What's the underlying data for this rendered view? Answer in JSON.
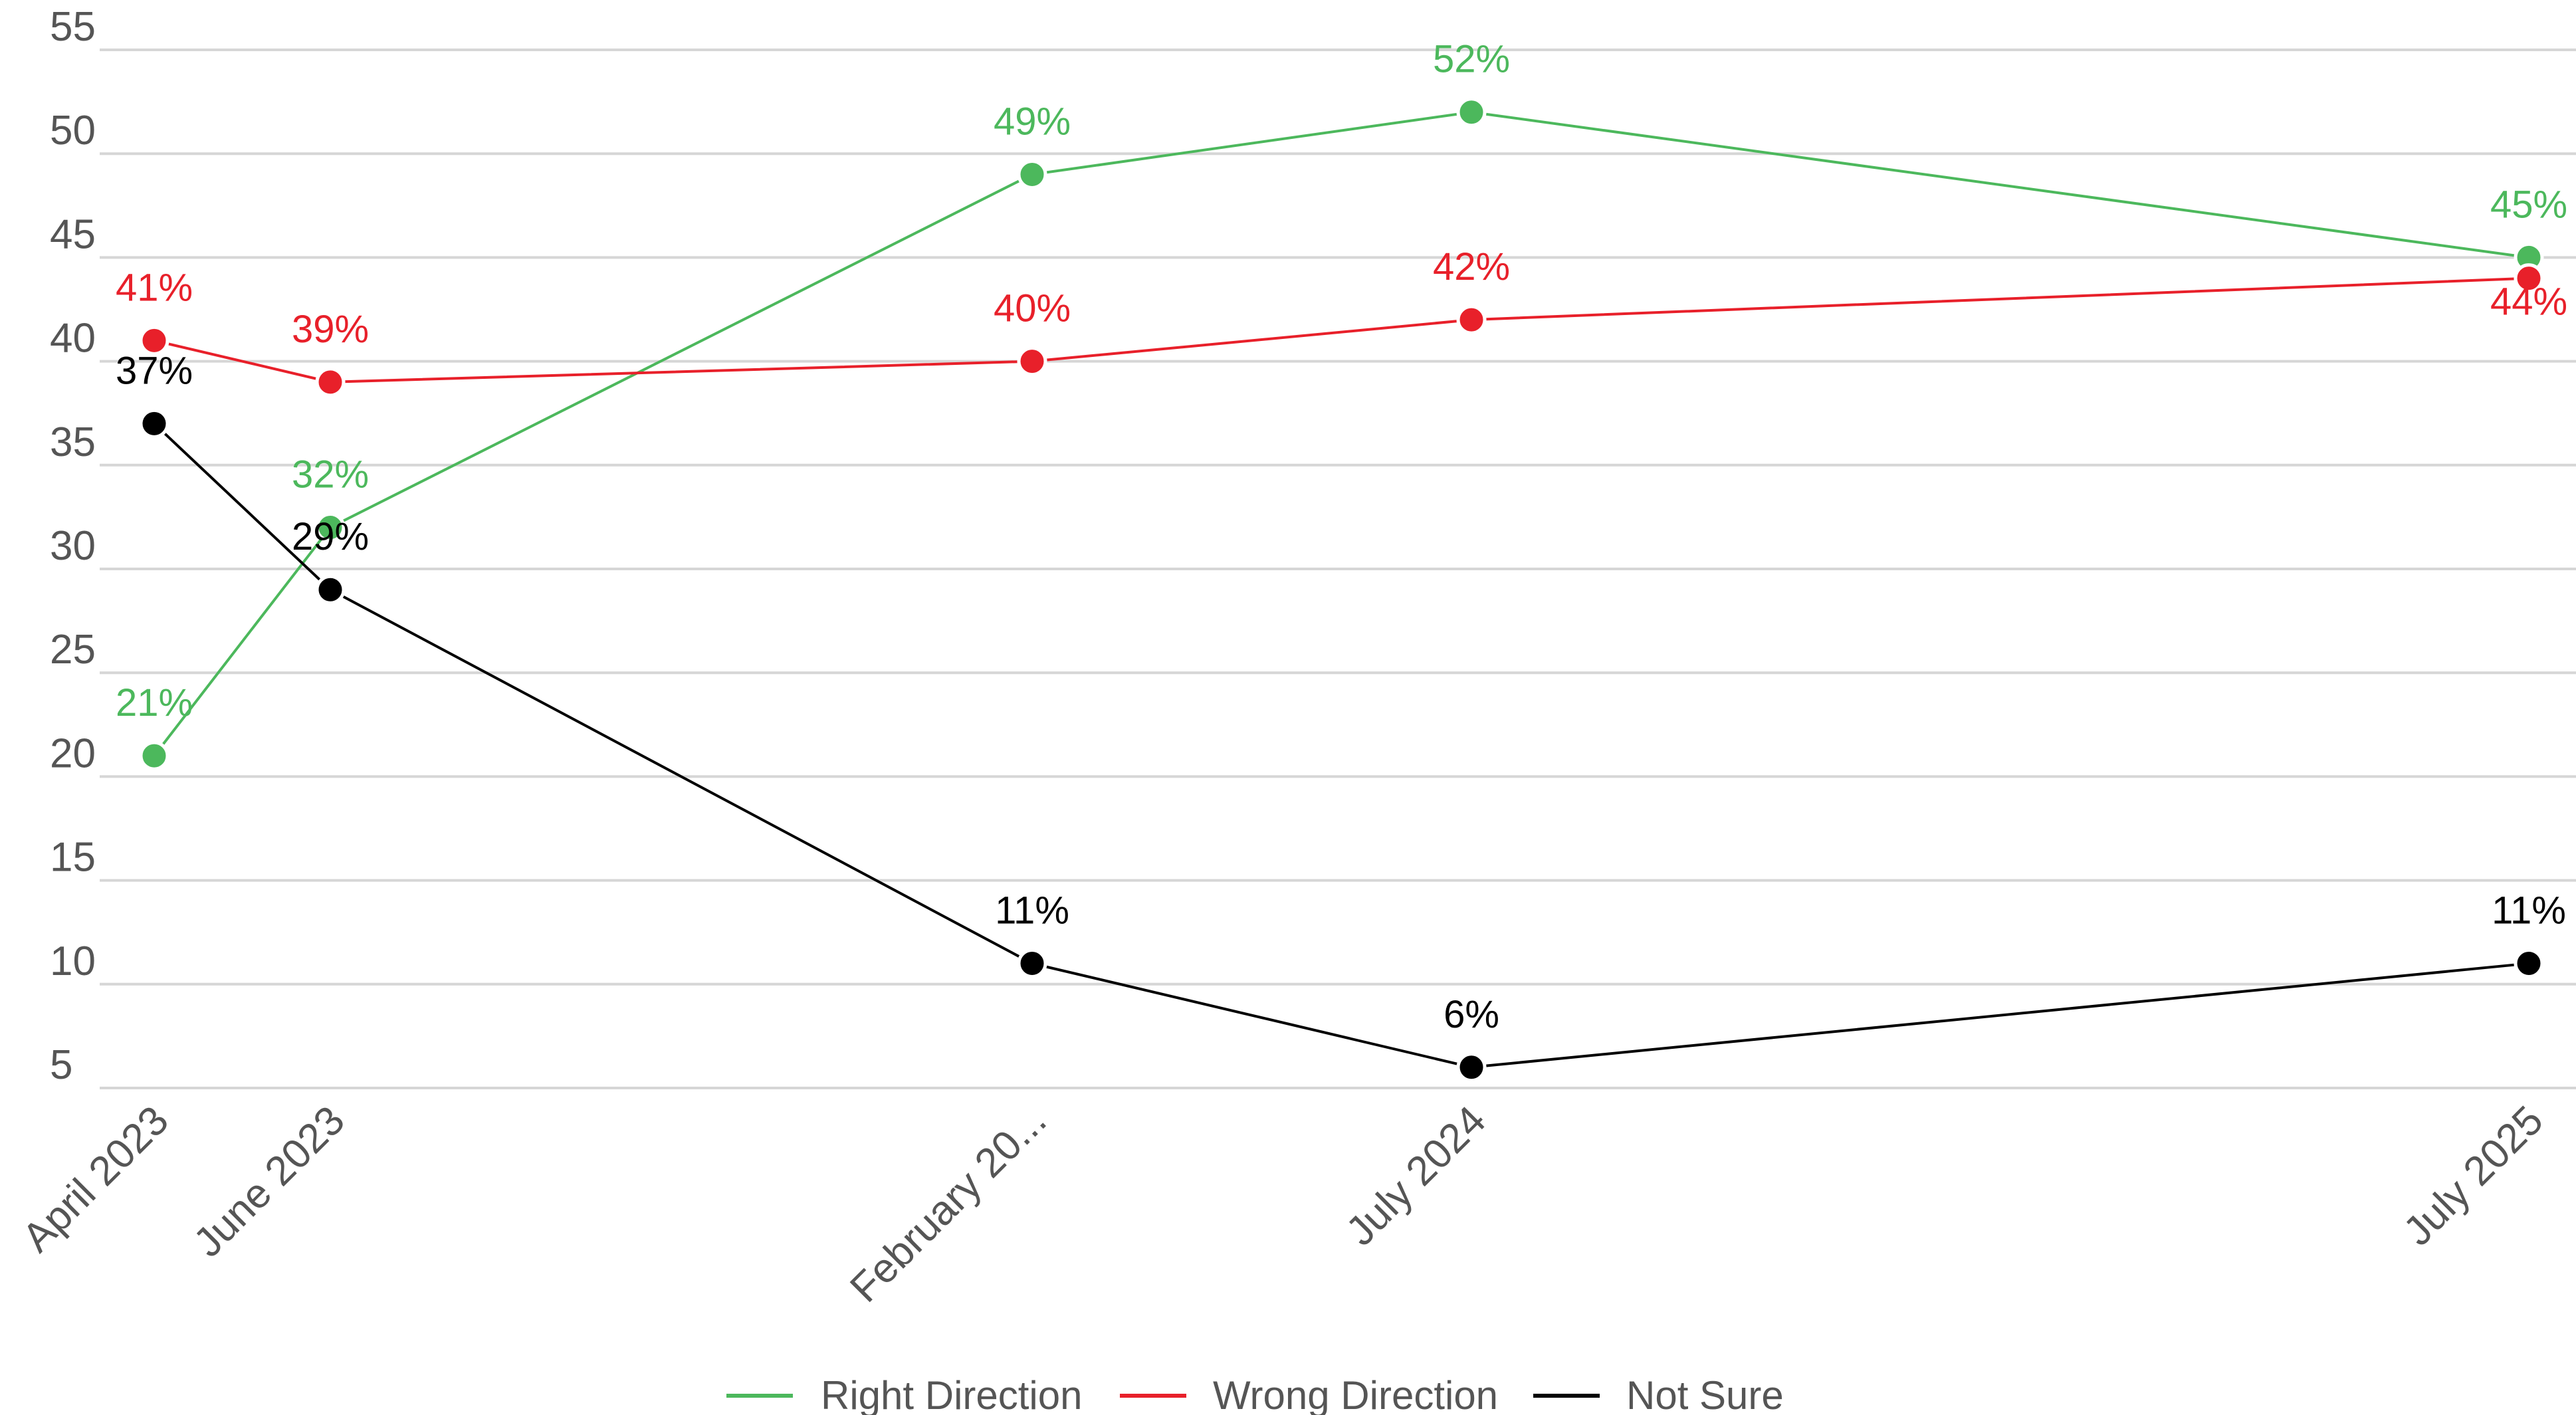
{
  "chart_data": {
    "type": "line",
    "title": "",
    "xlabel": "",
    "ylabel": "",
    "categories": [
      "April 2023",
      "June 2023",
      "February 20...",
      "July 2024",
      "July 2025"
    ],
    "ylim": [
      5,
      55
    ],
    "yticks": [
      5,
      10,
      15,
      20,
      25,
      30,
      35,
      40,
      45,
      50,
      55
    ],
    "grid": true,
    "legend_position": "bottom",
    "series": [
      {
        "name": "Right Direction",
        "color": "#4cb85c",
        "values": [
          21,
          32,
          49,
          52,
          45
        ],
        "labels": [
          "21%",
          "32%",
          "49%",
          "52%",
          "45%"
        ]
      },
      {
        "name": "Wrong Direction",
        "color": "#e8202a",
        "values": [
          41,
          39,
          40,
          42,
          44
        ],
        "labels": [
          "41%",
          "39%",
          "40%",
          "42%",
          "44%"
        ]
      },
      {
        "name": "Not Sure",
        "color": "#000000",
        "values": [
          37,
          29,
          11,
          6,
          11
        ],
        "labels": [
          "37%",
          "29%",
          "11%",
          "6%",
          "11%"
        ]
      }
    ]
  }
}
